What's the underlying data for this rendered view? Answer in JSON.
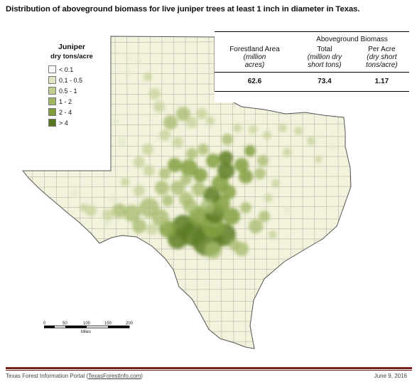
{
  "title": "Distribution of aboveground biomass for live juniper trees at least 1 inch in diameter in Texas.",
  "legend": {
    "title": "Juniper",
    "subtitle": "dry tons/acre",
    "items": [
      {
        "label": "< 0.1",
        "color": "#ffffff"
      },
      {
        "label": "0.1 - 0.5",
        "color": "#dde5c2"
      },
      {
        "label": "0.5 - 1",
        "color": "#bfcf92"
      },
      {
        "label": "1 - 2",
        "color": "#9fb665"
      },
      {
        "label": "2 - 4",
        "color": "#7e9c3c"
      },
      {
        "label": "> 4",
        "color": "#55761e"
      }
    ]
  },
  "summary_table": {
    "group_header": "Aboveground Biomass",
    "columns": [
      {
        "name": "Forestland Area",
        "unit_line1": "(million",
        "unit_line2": "acres)"
      },
      {
        "name": "Total",
        "unit_line1": "(million dry",
        "unit_line2": "short tons)"
      },
      {
        "name": "Per Acre",
        "unit_line1": "(dry short",
        "unit_line2": "tons/acre)"
      }
    ],
    "values": [
      "62.6",
      "73.4",
      "1.17"
    ]
  },
  "scale_bar": {
    "ticks": [
      "0",
      "50",
      "100",
      "150",
      "200"
    ],
    "unit": "Miles"
  },
  "footer": {
    "source_prefix": "Texas Forest Information Portal (",
    "source_link": "TexasForestInfo.com",
    "source_suffix": ")",
    "date": "June 9, 2016"
  },
  "colors": {
    "land": "#f3f2dc",
    "county_lines": "#a6a597",
    "outline": "#555555",
    "footer_rule": "#7b1f1f"
  }
}
